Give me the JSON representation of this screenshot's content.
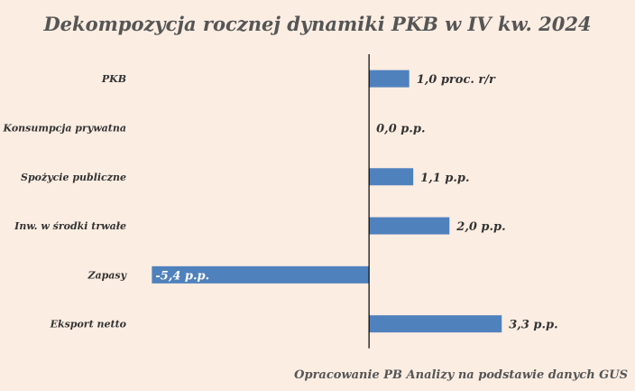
{
  "chart_data": {
    "type": "bar",
    "orientation": "horizontal",
    "title": "Dekompozycja rocznej dynamiki PKB w IV kw. 2024",
    "source": "Opracowanie PB Analizy na podstawie danych GUS",
    "categories": [
      "PKB",
      "Konsumpcja prywatna",
      "Spożycie publiczne",
      "Inw. w środki trwałe",
      "Zapasy",
      "Eksport netto"
    ],
    "values": [
      1.0,
      0.0,
      1.1,
      2.0,
      -5.4,
      3.3
    ],
    "data_labels": [
      "1,0 proc. r/r",
      "0,0 p.p.",
      "1,1 p.p.",
      "2,0 p.p.",
      "-5,4 p.p.",
      "3,3 p.p."
    ],
    "xlim": [
      -5.7,
      6.3
    ],
    "grid": false,
    "legend": "none",
    "bar_color": "#4f81bd"
  }
}
